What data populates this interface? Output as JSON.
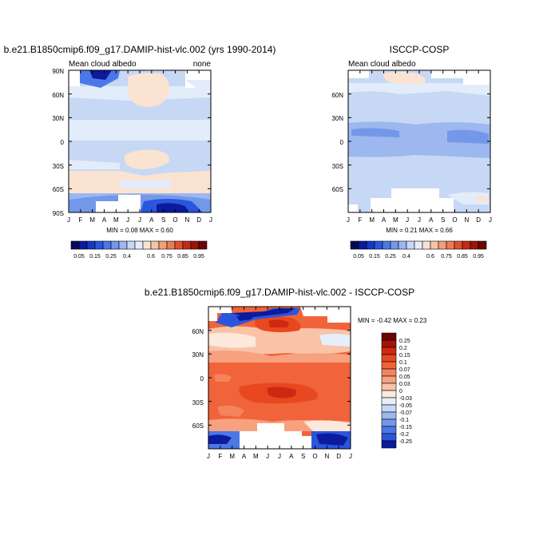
{
  "month_labels": [
    "J",
    "F",
    "M",
    "A",
    "M",
    "J",
    "J",
    "A",
    "S",
    "O",
    "N",
    "D",
    "J"
  ],
  "panels": {
    "model": {
      "title": "b.e21.B1850cmip6.f09_g17.DAMIP-hist-vlc.002 (yrs 1990-2014)",
      "left_label": "Mean cloud albedo",
      "right_label": "none",
      "ytick_labels": [
        "90N",
        "60N",
        "30N",
        "0",
        "30S",
        "60S",
        "90S"
      ],
      "stats": "MIN =   0.08 MAX =   0.60"
    },
    "obs": {
      "title": "ISCCP-COSP",
      "left_label": "Mean cloud albedo",
      "ytick_labels": [
        "60N",
        "30N",
        "0",
        "30S",
        "60S"
      ],
      "stats": "MIN =   0.21 MAX =   0.66"
    },
    "diff": {
      "title": "b.e21.B1850cmip6.f09_g17.DAMIP-hist-vlc.002 - ISCCP-COSP",
      "stats": "MIN =  -0.42 MAX =    0.23",
      "ytick_labels": [
        "60N",
        "30N",
        "0",
        "30S",
        "60S"
      ]
    }
  },
  "colorbar_abs": {
    "labels": [
      "0.05",
      "0.15",
      "0.25",
      "0.4",
      "0.6",
      "0.75",
      "0.85",
      "0.95"
    ],
    "colors": [
      "#08085a",
      "#0c1a9e",
      "#1536c8",
      "#2a56dd",
      "#4a78e6",
      "#7398ea",
      "#9cb8ef",
      "#c6d8f4",
      "#e3ecfa",
      "#fbe3d2",
      "#f7c4a6",
      "#f2a07a",
      "#ec7a52",
      "#e0502f",
      "#c52b17",
      "#9c1408",
      "#6e0303"
    ]
  },
  "colorbar_diff": {
    "labels": [
      "0.25",
      "0.2",
      "0.15",
      "0.1",
      "0.07",
      "0.05",
      "0.03",
      "0",
      "-0.03",
      "-0.05",
      "-0.07",
      "-0.1",
      "-0.15",
      "-0.2",
      "-0.25"
    ],
    "colors": [
      "#6e0303",
      "#a51208",
      "#cf2812",
      "#e8481f",
      "#f1633a",
      "#f4845c",
      "#f7a17f",
      "#f9c3a8",
      "#fde8dc",
      "#e6eefa",
      "#c6d8f4",
      "#9cb8ef",
      "#7398ea",
      "#4a78e6",
      "#2a56dd",
      "#0c1a9e"
    ]
  },
  "chart_data": [
    {
      "type": "heatmap",
      "title": "b.e21.B1850cmip6.f09_g17.DAMIP-hist-vlc.002 (yrs 1990-2014)",
      "variable": "Mean cloud albedo",
      "units": "none",
      "x": [
        "J",
        "F",
        "M",
        "A",
        "M",
        "J",
        "J",
        "A",
        "S",
        "O",
        "N",
        "D",
        "J"
      ],
      "y_range": [
        -90,
        90
      ],
      "min": 0.08,
      "max": 0.6,
      "regions": [
        {
          "area": "tropics/mid-latitudes",
          "value": 0.35
        },
        {
          "area": "NH summer Arctic (Jun-Aug)",
          "value": 0.45
        },
        {
          "area": "Southern Ocean 40S-60S",
          "value": 0.45
        },
        {
          "area": "equatorial Jun-Aug band",
          "value": 0.45
        },
        {
          "area": "Antarctic Sep-Nov",
          "value": 0.1
        },
        {
          "area": "Arctic winter Feb-Apr",
          "value": 0.1
        }
      ]
    },
    {
      "type": "heatmap",
      "title": "ISCCP-COSP",
      "variable": "Mean cloud albedo",
      "x": [
        "J",
        "F",
        "M",
        "A",
        "M",
        "J",
        "J",
        "A",
        "S",
        "O",
        "N",
        "D",
        "J"
      ],
      "y_range": [
        -90,
        90
      ],
      "min": 0.21,
      "max": 0.66,
      "regions": [
        {
          "area": "global background",
          "value": 0.3
        },
        {
          "area": "30N-30S band",
          "value": 0.25
        },
        {
          "area": "Arctic summer",
          "value": 0.45
        },
        {
          "area": "Southern Ocean winter",
          "value": 0.33
        }
      ]
    },
    {
      "type": "heatmap",
      "title": "b.e21.B1850cmip6.f09_g17.DAMIP-hist-vlc.002 - ISCCP-COSP",
      "x": [
        "J",
        "F",
        "M",
        "A",
        "M",
        "J",
        "J",
        "A",
        "S",
        "O",
        "N",
        "D",
        "J"
      ],
      "y_range": [
        -90,
        90
      ],
      "min": -0.42,
      "max": 0.23,
      "levels": [
        -0.25,
        -0.2,
        -0.15,
        -0.1,
        -0.07,
        -0.05,
        -0.03,
        0,
        0.03,
        0.05,
        0.07,
        0.1,
        0.15,
        0.2,
        0.25
      ],
      "regions": [
        {
          "area": "tropics/mid-latitudes",
          "value": 0.1
        },
        {
          "area": "equatorial Jul-Aug core",
          "value": 0.15
        },
        {
          "area": "Arctic Apr-Jun",
          "value": -0.25
        },
        {
          "area": "Antarctic Oct-Dec",
          "value": -0.2
        },
        {
          "area": "Antarctic Jan-Feb",
          "value": -0.1
        }
      ]
    }
  ]
}
